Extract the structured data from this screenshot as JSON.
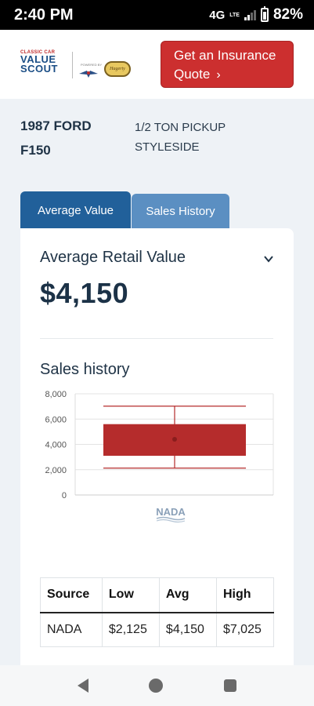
{
  "status_bar": {
    "time": "2:40 PM",
    "network": "4G",
    "network_sub": "LTE",
    "battery": "82%"
  },
  "header": {
    "logo": {
      "line1": "CLASSIC CAR",
      "line2": "VALUE",
      "line3": "SCOUT"
    },
    "partner_text": "POWERED BY",
    "partner_badge": "Hagerty",
    "quote_button": {
      "line1": "Get an Insurance",
      "line2": "Quote"
    },
    "accent_color": "#cc2f2f"
  },
  "vehicle": {
    "name_line1": "1987 FORD",
    "name_line2": "F150",
    "trim_line1": "1/2 TON PICKUP",
    "trim_line2": "STYLESIDE"
  },
  "tabs": [
    {
      "label": "Average Value",
      "active": true,
      "color": "#21609a"
    },
    {
      "label": "Sales History",
      "active": false,
      "color": "#5b8fc2"
    }
  ],
  "average": {
    "label": "Average Retail Value",
    "value": "$4,150"
  },
  "sales_history": {
    "title": "Sales history",
    "source_logo": "NADA"
  },
  "chart_data": {
    "type": "box",
    "categories": [
      "NADA"
    ],
    "series": [
      {
        "low": 2125,
        "q1": 3100,
        "median": 4150,
        "q3": 5600,
        "high": 7025,
        "mean": 4400,
        "color": "#b52c2c"
      }
    ],
    "y_ticks": [
      "8,000",
      "6,000",
      "4,000",
      "2,000",
      "0"
    ],
    "ylim": [
      0,
      8000
    ],
    "grid": true
  },
  "table": {
    "headers": [
      "Source",
      "Low",
      "Avg",
      "High"
    ],
    "rows": [
      [
        "NADA",
        "$2,125",
        "$4,150",
        "$7,025"
      ]
    ]
  }
}
